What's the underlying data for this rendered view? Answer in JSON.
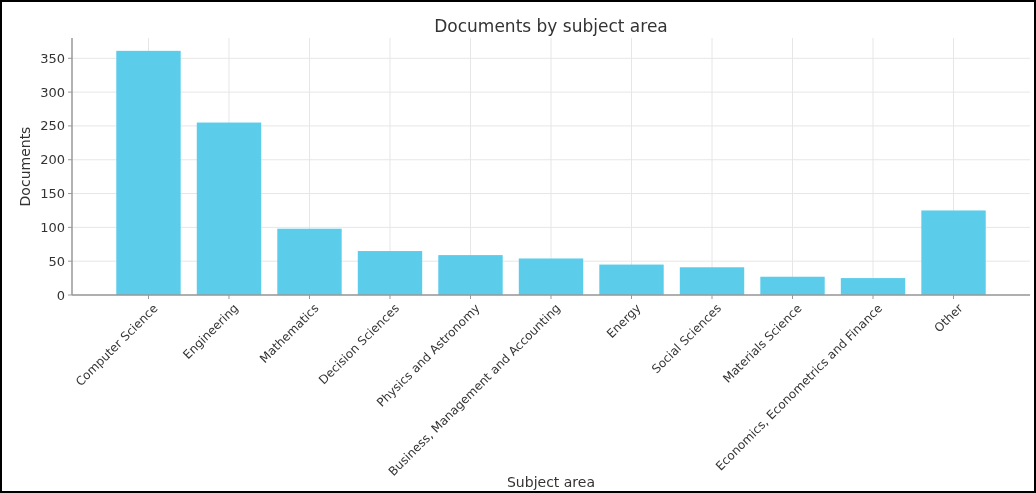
{
  "chart_data": {
    "type": "bar",
    "title": "Documents by subject area",
    "xlabel": "Subject area",
    "ylabel": "Documents",
    "categories": [
      "Computer Science",
      "Engineering",
      "Mathematics",
      "Decision Sciences",
      "Physics and Astronomy",
      "Business, Management and Accounting",
      "Energy",
      "Social Sciences",
      "Materials Science",
      "Economics, Econometrics and Finance",
      "Other"
    ],
    "values": [
      361,
      255,
      98,
      65,
      59,
      54,
      45,
      41,
      27,
      25,
      125
    ],
    "color": "#5bcdeb",
    "ylim": [
      0,
      380
    ],
    "yticks": [
      0,
      50,
      100,
      150,
      200,
      250,
      300,
      350
    ],
    "grid": true
  }
}
